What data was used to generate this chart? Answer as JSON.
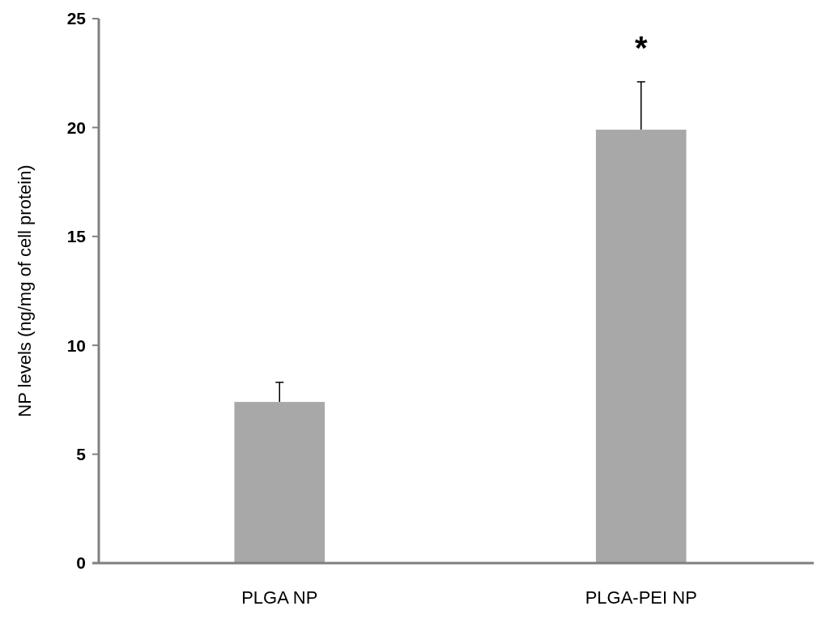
{
  "chart_data": {
    "type": "bar",
    "ylabel": "NP levels (ng/mg of cell protein)",
    "categories": [
      "PLGA NP",
      "PLGA-PEI NP"
    ],
    "values": [
      7.4,
      19.9
    ],
    "errors": [
      [
        7.4,
        8.3
      ],
      [
        19.9,
        22.1
      ]
    ],
    "color": "#a8a8a8",
    "ylim": [
      0,
      25
    ],
    "yticks": [
      0,
      5,
      10,
      15,
      20,
      25
    ],
    "annotations": [
      "*"
    ]
  }
}
